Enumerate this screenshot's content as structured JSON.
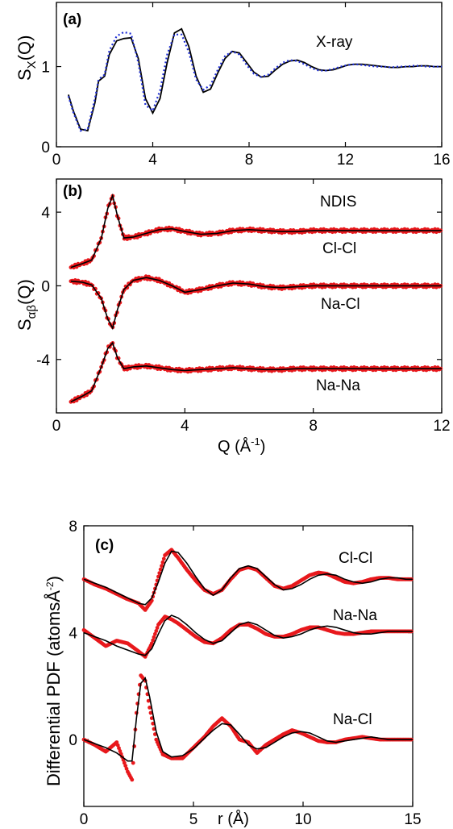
{
  "colors": {
    "model": "#000000",
    "xray_dotted": "#1f2fd6",
    "ndis": "#e8181c"
  },
  "chart_data": [
    {
      "panel": "(a)",
      "type": "line",
      "xlabel": "",
      "ylabel": {
        "main": "S",
        "sub": "X",
        "tail": "(Q)"
      },
      "xlim": [
        0,
        16
      ],
      "ylim": [
        0,
        1.8
      ],
      "xticks": [
        "0",
        "4",
        "8",
        "12",
        "16"
      ],
      "yticks": [
        "0",
        "1"
      ],
      "annotations": [
        "X-ray"
      ],
      "series": [
        {
          "style": "solid",
          "color": "#000000",
          "x": [
            0.5,
            0.7,
            1.0,
            1.3,
            1.6,
            1.75,
            2.0,
            2.2,
            2.5,
            2.8,
            3.1,
            3.4,
            3.7,
            4.0,
            4.3,
            4.6,
            4.9,
            5.2,
            5.5,
            5.8,
            6.1,
            6.4,
            6.7,
            7.0,
            7.3,
            7.6,
            7.9,
            8.2,
            8.5,
            8.8,
            9.1,
            9.4,
            9.7,
            10.0,
            10.3,
            10.6,
            10.9,
            11.2,
            11.5,
            11.8,
            12.1,
            12.4,
            12.7,
            13.0,
            13.3,
            13.6,
            13.9,
            14.2,
            14.5,
            14.8,
            15.1,
            15.4,
            15.7,
            16.0
          ],
          "y": [
            0.65,
            0.45,
            0.22,
            0.2,
            0.55,
            0.82,
            0.88,
            1.15,
            1.32,
            1.35,
            1.36,
            1.1,
            0.6,
            0.42,
            0.6,
            1.05,
            1.42,
            1.47,
            1.25,
            0.88,
            0.68,
            0.72,
            0.92,
            1.1,
            1.19,
            1.17,
            1.05,
            0.93,
            0.87,
            0.88,
            0.96,
            1.03,
            1.07,
            1.08,
            1.05,
            1.0,
            0.96,
            0.95,
            0.96,
            0.99,
            1.02,
            1.03,
            1.03,
            1.02,
            1.01,
            1.0,
            0.99,
            0.99,
            1.0,
            1.0,
            1.01,
            1.01,
            1.0,
            1.0
          ]
        },
        {
          "style": "dotted",
          "color": "#1f2fd6",
          "x": [
            0.5,
            0.7,
            1.0,
            1.3,
            1.6,
            1.75,
            2.0,
            2.2,
            2.5,
            2.8,
            3.1,
            3.4,
            3.7,
            4.0,
            4.3,
            4.6,
            4.9,
            5.2,
            5.5,
            5.8,
            6.1,
            6.4,
            6.7,
            7.0,
            7.3,
            7.6,
            7.9,
            8.2,
            8.5,
            8.8,
            9.1,
            9.4,
            9.7,
            10.0,
            10.3,
            10.6,
            10.9,
            11.2,
            11.5,
            11.8,
            12.1,
            12.4,
            12.7,
            13.0,
            13.3,
            13.6,
            13.9,
            14.2,
            14.5,
            14.8,
            15.1,
            15.4,
            15.7,
            16.0
          ],
          "y": [
            0.63,
            0.43,
            0.2,
            0.22,
            0.6,
            0.84,
            0.9,
            1.2,
            1.38,
            1.43,
            1.41,
            1.05,
            0.52,
            0.45,
            0.7,
            1.15,
            1.4,
            1.4,
            1.18,
            0.84,
            0.71,
            0.77,
            0.96,
            1.13,
            1.19,
            1.15,
            1.02,
            0.91,
            0.87,
            0.9,
            0.98,
            1.05,
            1.08,
            1.07,
            1.03,
            0.98,
            0.95,
            0.95,
            0.97,
            1.0,
            1.02,
            1.03,
            1.02,
            1.01,
            1.0,
            1.0,
            0.99,
            1.0,
            1.0,
            1.01,
            1.01,
            1.0,
            1.0,
            1.0
          ]
        }
      ]
    },
    {
      "panel": "(b)",
      "type": "line",
      "xlabel": {
        "main": "Q (Å",
        "sup": "-1",
        "tail": ")"
      },
      "ylabel": {
        "main": "S",
        "sub": "αβ",
        "tail": "(Q)"
      },
      "xlim": [
        0,
        12
      ],
      "ylim": [
        -6.9,
        5.8
      ],
      "xticks": [
        "0",
        "4",
        "8",
        "12"
      ],
      "yticks": [
        "4",
        "0",
        "-4"
      ],
      "annotations": [
        "NDIS",
        "Cl-Cl",
        "Na-Cl",
        "Na-Na"
      ],
      "series": [
        {
          "label": "Cl-Cl",
          "model_x": [
            0.45,
            0.8,
            1.1,
            1.4,
            1.6,
            1.75,
            1.9,
            2.1,
            2.4,
            2.8,
            3.2,
            3.6,
            4.0,
            4.5,
            5.0,
            5.5,
            6.0,
            6.5,
            7.0,
            7.5,
            8.0,
            9,
            10,
            11,
            12
          ],
          "model_y": [
            1.0,
            1.2,
            1.4,
            2.6,
            4.2,
            4.9,
            3.8,
            2.6,
            2.65,
            2.85,
            3.05,
            3.1,
            2.95,
            2.8,
            2.85,
            3.0,
            3.05,
            3.0,
            2.95,
            2.95,
            3.0,
            3.0,
            3.0,
            3.0,
            3.0
          ]
        },
        {
          "label": "Na-Cl",
          "model_x": [
            0.45,
            0.8,
            1.1,
            1.4,
            1.6,
            1.75,
            1.9,
            2.1,
            2.4,
            2.8,
            3.2,
            3.6,
            4.0,
            4.5,
            5.0,
            5.5,
            6.0,
            6.5,
            7.0,
            7.5,
            8.0,
            9,
            10,
            11,
            12
          ],
          "model_y": [
            0.25,
            0.2,
            0.05,
            -0.7,
            -1.8,
            -2.3,
            -1.3,
            -0.2,
            0.3,
            0.45,
            0.3,
            0.0,
            -0.35,
            -0.2,
            0.0,
            0.15,
            0.1,
            -0.05,
            -0.1,
            -0.05,
            0.0,
            0.0,
            0.0,
            0.0,
            0.0
          ]
        },
        {
          "label": "Na-Na",
          "model_x": [
            0.45,
            0.8,
            1.1,
            1.4,
            1.6,
            1.75,
            1.9,
            2.1,
            2.4,
            2.8,
            3.2,
            3.6,
            4.0,
            4.5,
            5.0,
            5.5,
            6.0,
            6.5,
            7.0,
            7.5,
            8.0,
            9,
            10,
            11,
            12
          ],
          "model_y": [
            -6.3,
            -6.0,
            -5.7,
            -4.4,
            -3.4,
            -3.1,
            -3.9,
            -4.5,
            -4.4,
            -4.35,
            -4.45,
            -4.55,
            -4.6,
            -4.55,
            -4.5,
            -4.45,
            -4.5,
            -4.55,
            -4.55,
            -4.5,
            -4.5,
            -4.5,
            -4.5,
            -4.5,
            -4.5
          ]
        }
      ]
    },
    {
      "panel": "(c)",
      "type": "line",
      "xlabel": "r (Å)",
      "ylabel": {
        "main": "Differential PDF (atomsÅ",
        "sup": "-2",
        "tail": ")"
      },
      "xlim": [
        0,
        15
      ],
      "ylim": [
        -2.5,
        8.0
      ],
      "xticks": [
        "0",
        "5",
        "10",
        "15"
      ],
      "yticks": [
        "8",
        "4",
        "0"
      ],
      "annotations": [
        "Cl-Cl",
        "Na-Na",
        "Na-Cl"
      ],
      "series": [
        {
          "label": "Cl-Cl",
          "model_x": [
            0,
            0.5,
            1,
            1.5,
            2,
            2.5,
            2.8,
            3.1,
            3.4,
            3.7,
            4.0,
            4.3,
            4.7,
            5.1,
            5.5,
            5.9,
            6.3,
            6.7,
            7.1,
            7.5,
            7.9,
            8.3,
            8.7,
            9.1,
            9.5,
            9.9,
            10.3,
            10.7,
            11.1,
            11.5,
            11.9,
            12.3,
            12.7,
            13.1,
            13.5,
            13.9,
            14.3,
            14.7,
            15.0
          ],
          "model_y": [
            6.0,
            5.85,
            5.7,
            5.5,
            5.3,
            5.1,
            5.05,
            5.3,
            5.9,
            6.6,
            7.05,
            7.0,
            6.6,
            6.1,
            5.65,
            5.4,
            5.6,
            6.05,
            6.4,
            6.5,
            6.4,
            6.1,
            5.8,
            5.6,
            5.65,
            5.8,
            6.0,
            6.15,
            6.2,
            6.15,
            6.0,
            5.9,
            5.85,
            5.9,
            6.0,
            6.05,
            6.05,
            6.0,
            6.0
          ],
          "data_y": [
            6.0,
            5.8,
            5.65,
            5.45,
            5.25,
            5.1,
            4.85,
            5.2,
            6.1,
            6.9,
            7.1,
            6.8,
            6.35,
            5.95,
            5.6,
            5.45,
            5.6,
            6.0,
            6.35,
            6.45,
            6.35,
            6.05,
            5.75,
            5.65,
            5.75,
            5.95,
            6.15,
            6.25,
            6.2,
            6.05,
            5.9,
            5.85,
            5.9,
            6.0,
            6.05,
            6.05,
            6.0,
            6.0,
            6.0
          ]
        },
        {
          "label": "Na-Na",
          "model_x": [
            0,
            0.5,
            1,
            1.5,
            2,
            2.5,
            2.8,
            3.1,
            3.4,
            3.7,
            4.0,
            4.3,
            4.7,
            5.1,
            5.5,
            5.9,
            6.3,
            6.7,
            7.1,
            7.5,
            7.9,
            8.3,
            8.7,
            9.1,
            9.5,
            9.9,
            10.3,
            10.7,
            11.1,
            11.5,
            11.9,
            12.3,
            12.7,
            13.1,
            13.5,
            13.9,
            14.3,
            14.7,
            15.0
          ],
          "model_y": [
            4.0,
            3.85,
            3.7,
            3.5,
            3.35,
            3.2,
            3.15,
            3.4,
            3.95,
            4.45,
            4.65,
            4.55,
            4.3,
            4.0,
            3.75,
            3.6,
            3.7,
            4.0,
            4.3,
            4.4,
            4.3,
            4.1,
            3.9,
            3.8,
            3.85,
            3.95,
            4.1,
            4.2,
            4.25,
            4.2,
            4.1,
            4.0,
            3.95,
            3.95,
            4.0,
            4.05,
            4.05,
            4.05,
            4.05
          ],
          "data_y": [
            4.1,
            3.8,
            3.5,
            3.7,
            3.6,
            3.3,
            3.1,
            3.6,
            4.3,
            4.6,
            4.5,
            4.35,
            4.1,
            3.85,
            3.65,
            3.6,
            3.8,
            4.1,
            4.3,
            4.3,
            4.15,
            3.95,
            3.85,
            3.85,
            3.95,
            4.1,
            4.2,
            4.2,
            4.1,
            4.0,
            3.95,
            3.95,
            4.0,
            4.05,
            4.05,
            4.05,
            4.05,
            4.05,
            4.05
          ]
        },
        {
          "label": "Na-Cl",
          "model_x": [
            0,
            0.5,
            1,
            1.5,
            2,
            2.2,
            2.4,
            2.6,
            2.8,
            3.0,
            3.3,
            3.6,
            4.0,
            4.5,
            5.0,
            5.5,
            5.9,
            6.3,
            6.7,
            7.1,
            7.5,
            7.9,
            8.3,
            8.7,
            9.1,
            9.5,
            9.9,
            10.3,
            10.7,
            11.1,
            11.5,
            11.9,
            12.3,
            12.7,
            13.1,
            13.5,
            13.9,
            14.3,
            14.7,
            15.0
          ],
          "model_y": [
            0.0,
            -0.15,
            -0.3,
            -0.5,
            -0.8,
            -0.8,
            0.8,
            2.1,
            2.3,
            1.6,
            0.3,
            -0.45,
            -0.65,
            -0.6,
            -0.35,
            0.05,
            0.35,
            0.6,
            0.55,
            0.2,
            -0.2,
            -0.35,
            -0.3,
            -0.1,
            0.1,
            0.25,
            0.3,
            0.25,
            0.1,
            -0.05,
            -0.1,
            -0.05,
            0.0,
            0.05,
            0.1,
            0.05,
            0.0,
            0.0,
            0.0,
            0.0
          ],
          "data_y": [
            0.0,
            -0.2,
            -0.45,
            -0.1,
            -1.2,
            -1.5,
            1.0,
            2.4,
            2.2,
            1.2,
            0.0,
            -0.55,
            -0.7,
            -0.7,
            -0.3,
            0.1,
            0.5,
            0.8,
            0.5,
            0.0,
            -0.1,
            -0.5,
            -0.2,
            0.0,
            0.2,
            0.35,
            0.25,
            0.1,
            -0.05,
            -0.1,
            -0.1,
            0.0,
            0.05,
            0.1,
            0.05,
            0.0,
            0.0,
            0.0,
            0.0,
            0.0
          ]
        }
      ]
    }
  ]
}
